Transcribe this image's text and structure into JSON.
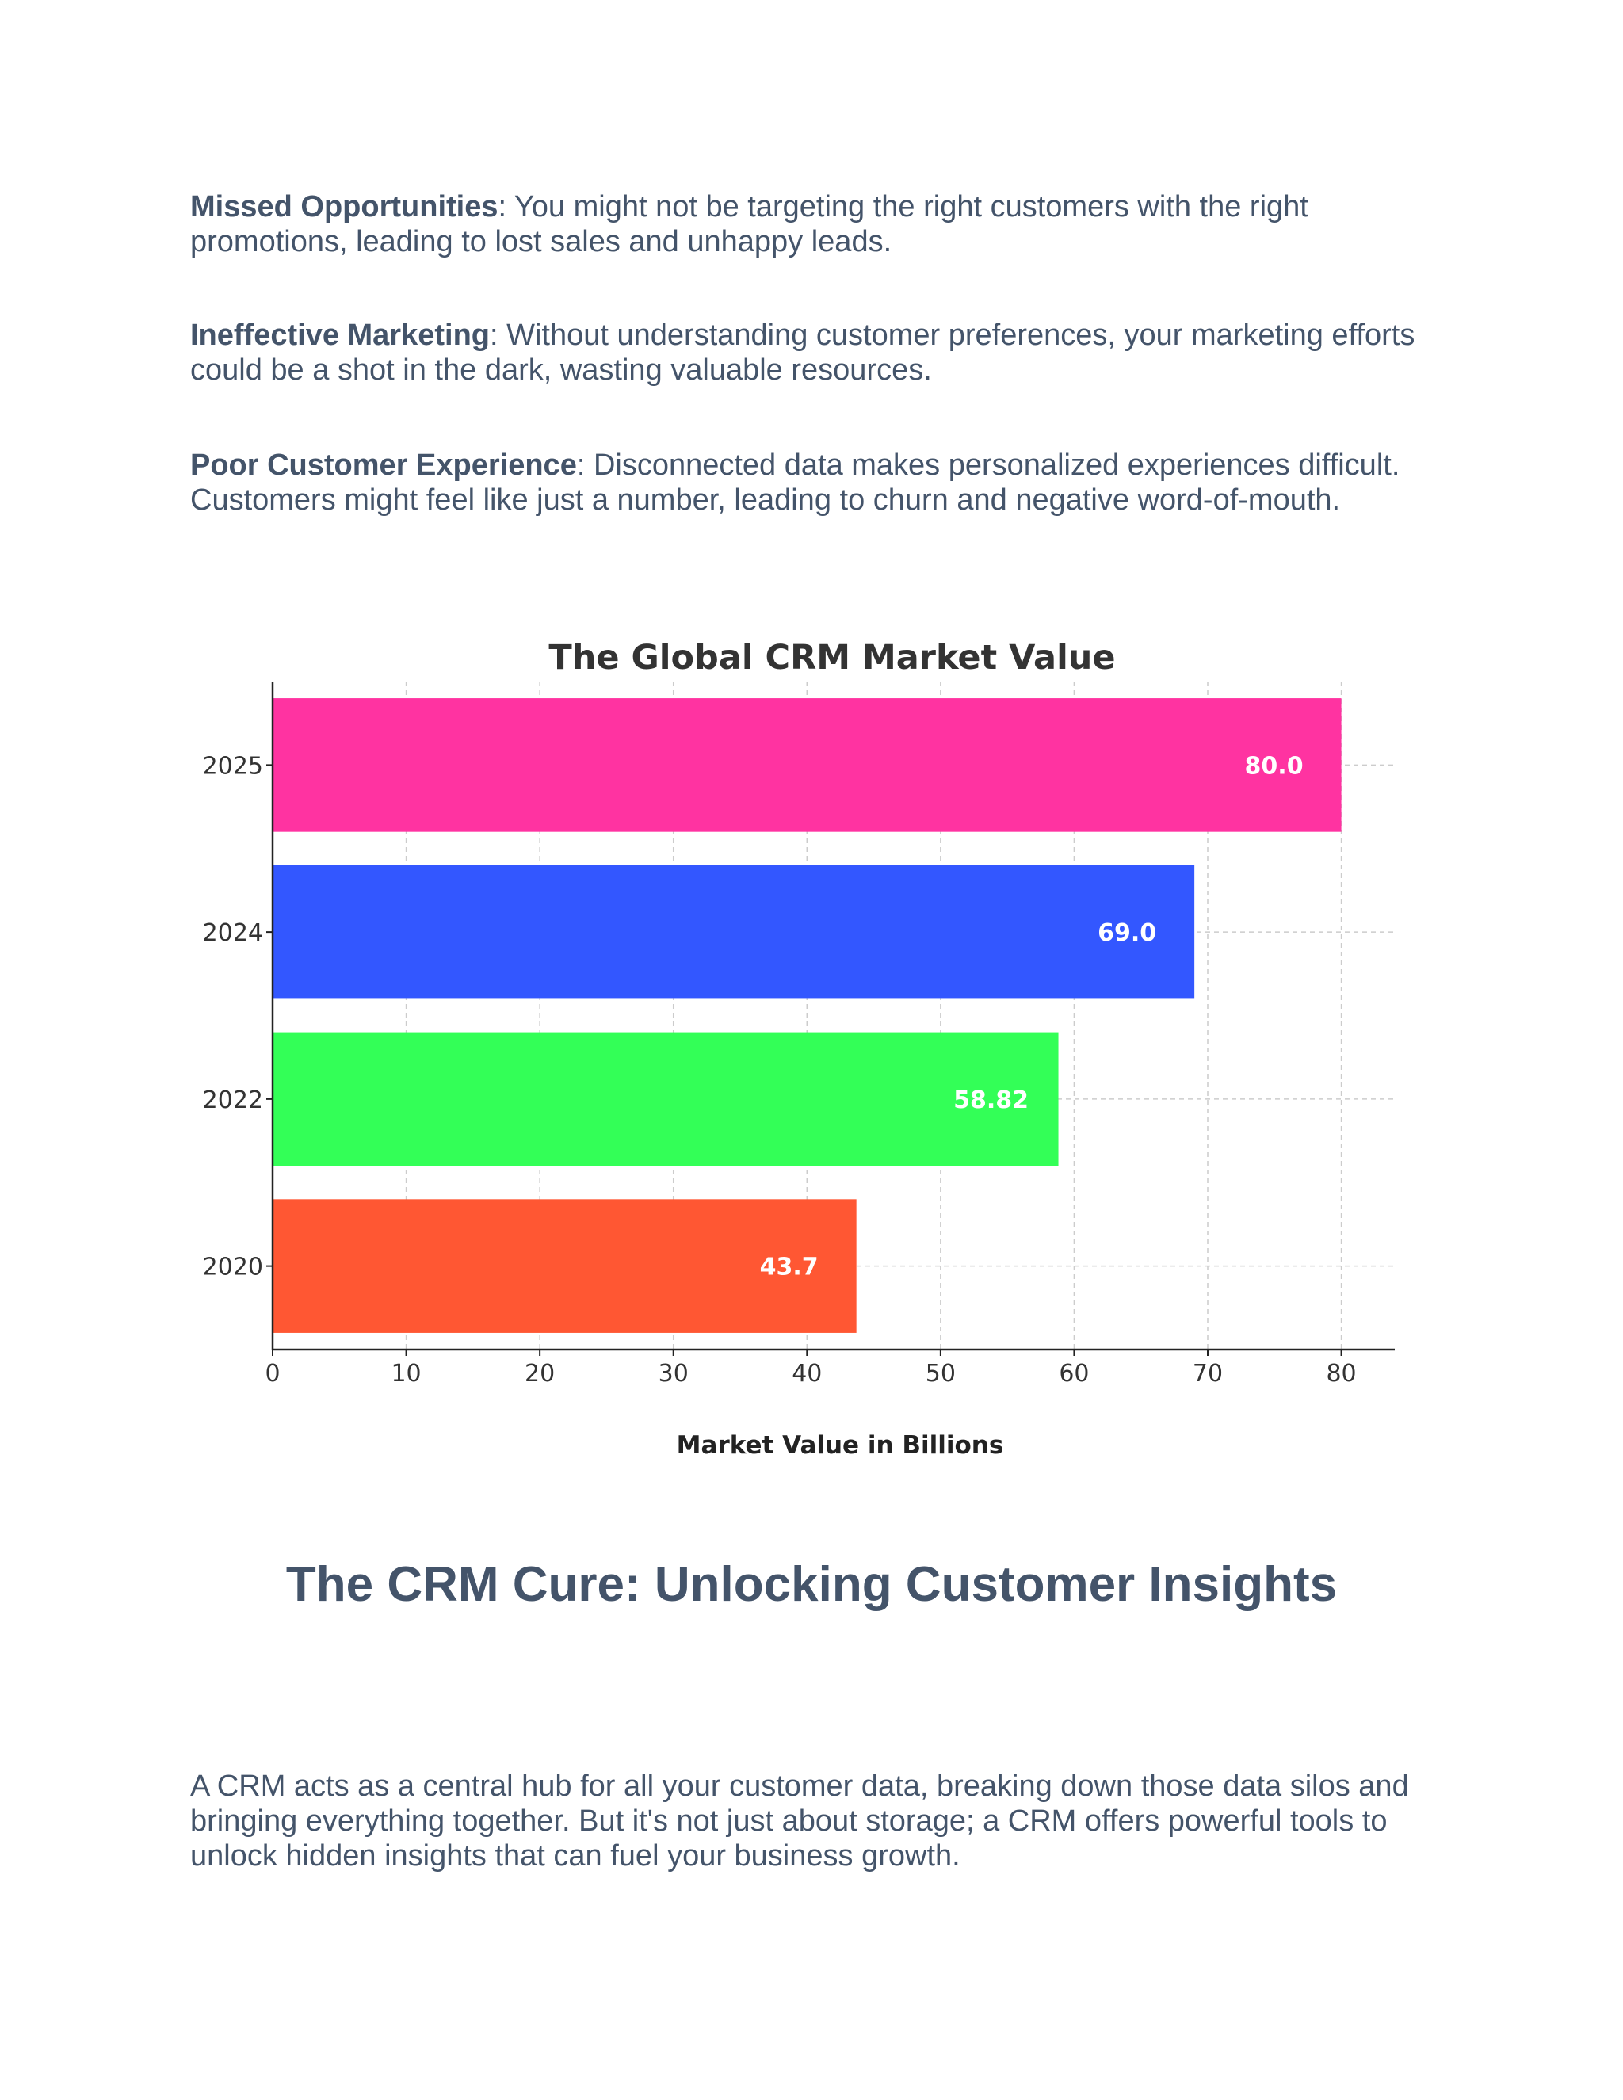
{
  "paragraphs": [
    {
      "term": "Missed Opportunities",
      "text": ": You might not be targeting the right customers with the right promotions, leading to lost sales and unhappy leads."
    },
    {
      "term": "Ineffective Marketing",
      "text": ": Without understanding customer preferences, your marketing efforts could be a shot in the dark, wasting valuable resources."
    },
    {
      "term": "Poor Customer Experience",
      "text": ": Disconnected data makes personalized experiences difficult. Customers might feel like just a number, leading to churn and negative word-of-mouth."
    }
  ],
  "chart_data": {
    "type": "bar",
    "orientation": "horizontal",
    "title": "The Global CRM Market Value",
    "xlabel": "Market Value in Billions",
    "ylabel": "",
    "categories": [
      "2020",
      "2022",
      "2024",
      "2025"
    ],
    "values": [
      43.7,
      58.82,
      69.0,
      80.0
    ],
    "data_labels": [
      "43.7",
      "58.82",
      "69.0",
      "80.0"
    ],
    "colors": [
      "#ff5733",
      "#33ff57",
      "#3357ff",
      "#ff33a1"
    ],
    "xlim": [
      0,
      84
    ],
    "xticks": [
      0,
      10,
      20,
      30,
      40,
      50,
      60,
      70,
      80
    ],
    "grid": true,
    "legend": "none"
  },
  "section": {
    "heading": "The CRM Cure: Unlocking Customer Insights",
    "body": "A CRM acts as a central hub for all your customer data, breaking down those data silos and bringing everything together.  But it's not just about storage; a CRM offers powerful tools to unlock hidden insights that can fuel your business growth."
  },
  "colors": {
    "text": "#44546a",
    "chart_text": "#333333",
    "grid": "#cccccc"
  }
}
